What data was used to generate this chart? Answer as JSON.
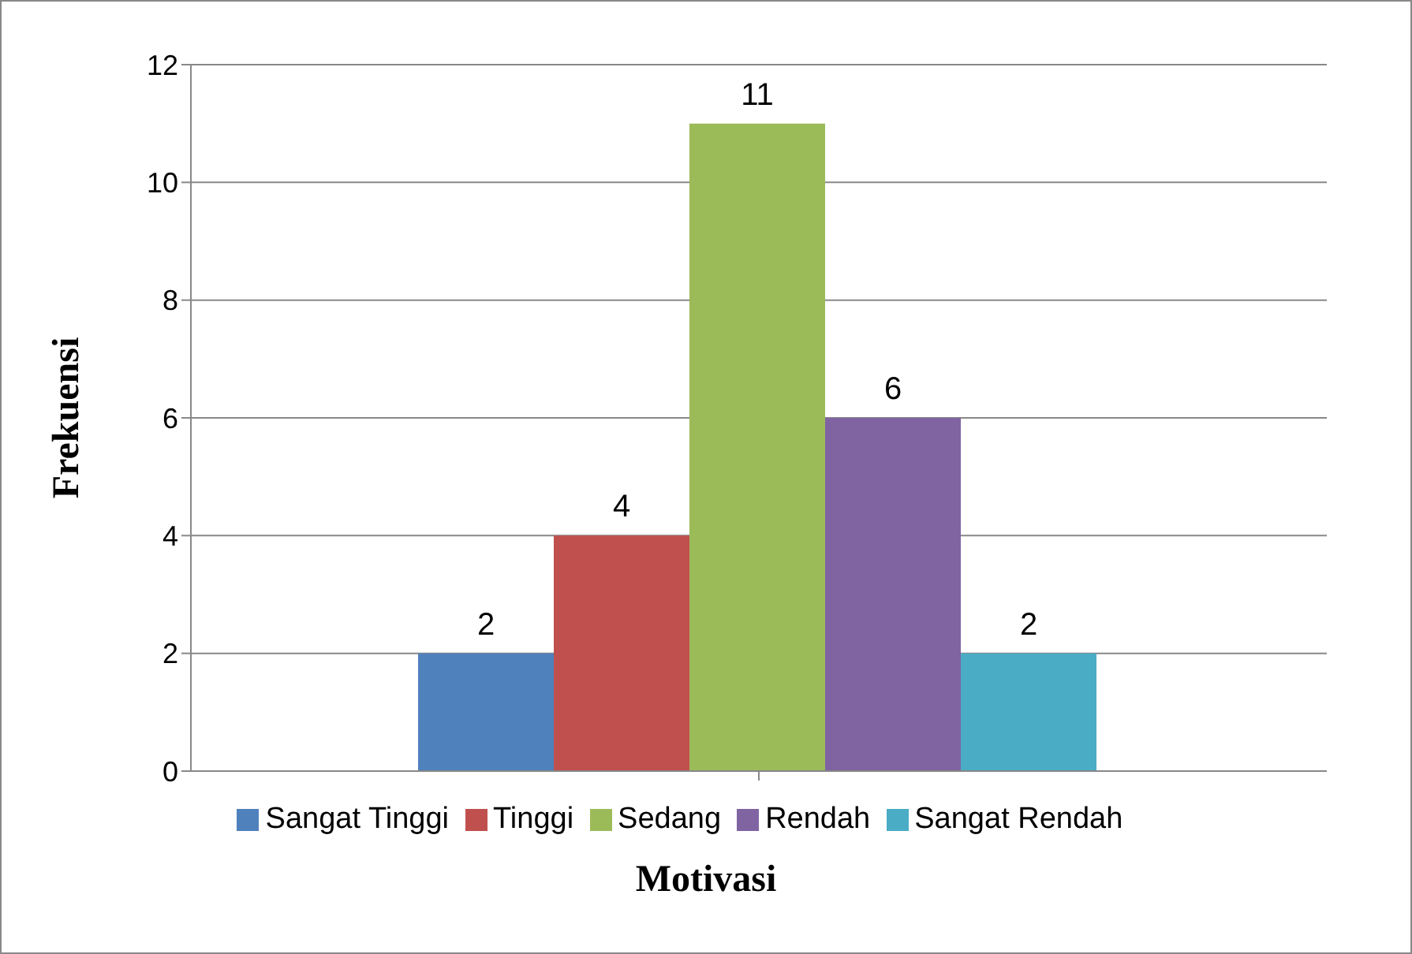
{
  "chart_data": {
    "type": "bar",
    "xlabel": "Motivasi",
    "ylabel": "Frekuensi",
    "categories": [
      null
    ],
    "series": [
      {
        "name": "Sangat Tinggi",
        "color": "#4f81bd",
        "values": [
          2
        ]
      },
      {
        "name": "Tinggi",
        "color": "#c0504d",
        "values": [
          4
        ]
      },
      {
        "name": "Sedang",
        "color": "#9bbb59",
        "values": [
          11
        ]
      },
      {
        "name": "Rendah",
        "color": "#8064a2",
        "values": [
          6
        ]
      },
      {
        "name": "Sangat Rendah",
        "color": "#4bacc6",
        "values": [
          2
        ]
      }
    ],
    "ylim": [
      0,
      12
    ],
    "yticks": [
      0,
      2,
      4,
      6,
      8,
      10,
      12
    ],
    "grid": "y",
    "legend": "bottom",
    "data_labels": true
  }
}
